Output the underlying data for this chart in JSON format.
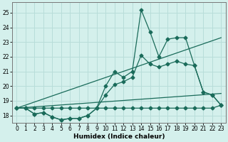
{
  "xlabel": "Humidex (Indice chaleur)",
  "background_color": "#d4f0ec",
  "grid_color": "#b8ddd9",
  "line_color": "#1a6b5a",
  "x_values": [
    0,
    1,
    2,
    3,
    4,
    5,
    6,
    7,
    8,
    9,
    10,
    11,
    12,
    13,
    14,
    15,
    16,
    17,
    18,
    19,
    20,
    21,
    22,
    23
  ],
  "series1": [
    18.5,
    18.5,
    18.1,
    18.2,
    17.9,
    17.7,
    17.8,
    17.8,
    18.0,
    18.5,
    20.0,
    21.0,
    20.6,
    21.0,
    25.2,
    23.7,
    22.0,
    23.2,
    23.3,
    23.3,
    21.4,
    19.6,
    19.4,
    18.7
  ],
  "series2": [
    18.5,
    18.5,
    18.1,
    18.2,
    17.9,
    17.7,
    17.8,
    17.8,
    18.0,
    18.5,
    19.4,
    20.1,
    20.3,
    20.6,
    22.1,
    21.5,
    21.3,
    21.5,
    21.7,
    21.5,
    21.4,
    19.6,
    19.4,
    18.7
  ],
  "series3": [
    18.5,
    18.5,
    18.5,
    18.5,
    18.5,
    18.5,
    18.5,
    18.5,
    18.5,
    18.5,
    18.5,
    18.5,
    18.5,
    18.5,
    18.5,
    18.5,
    18.5,
    18.5,
    18.5,
    18.5,
    18.5,
    18.5,
    18.5,
    18.7
  ],
  "trend1_x": [
    0,
    23
  ],
  "trend1_y": [
    18.5,
    23.3
  ],
  "trend2_x": [
    0,
    23
  ],
  "trend2_y": [
    18.5,
    19.5
  ],
  "ylim": [
    17.5,
    25.7
  ],
  "xlim": [
    -0.5,
    23.5
  ],
  "yticks": [
    18,
    19,
    20,
    21,
    22,
    23,
    24,
    25
  ],
  "xticks": [
    0,
    1,
    2,
    3,
    4,
    5,
    6,
    7,
    8,
    9,
    10,
    11,
    12,
    13,
    14,
    15,
    16,
    17,
    18,
    19,
    20,
    21,
    22,
    23
  ]
}
